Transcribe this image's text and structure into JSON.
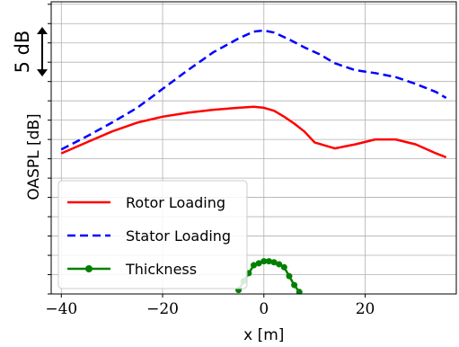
{
  "chart_data": {
    "type": "line",
    "xlabel": "x [m]",
    "ylabel": "OASPL [dB]",
    "scale_annotation": "5 dB",
    "scale_annotation_value_db": 5,
    "x_ticks": [
      -40,
      -20,
      0,
      20
    ],
    "x_tick_labels": [
      "−40",
      "−20",
      "0",
      "20"
    ],
    "xlim": [
      -42,
      38
    ],
    "ylim": [
      0,
      29.5
    ],
    "y_minor_ticks": [
      0,
      1.95,
      3.9,
      5.85,
      7.8,
      9.75,
      11.7,
      13.65,
      15.6,
      17.55,
      19.5,
      21.45,
      23.4,
      25.35,
      27.3,
      29.25
    ],
    "grid": true,
    "legend_position": "lower-left",
    "series": [
      {
        "name": "Rotor Loading",
        "color": "#ff0000",
        "style": "solid",
        "x": [
          -40,
          -35,
          -30,
          -25,
          -20,
          -15,
          -10,
          -5,
          -2,
          0,
          2,
          4,
          6,
          8,
          10,
          14,
          18,
          22,
          26,
          30,
          34,
          36
        ],
        "y": [
          14.2,
          15.3,
          16.4,
          17.3,
          17.9,
          18.3,
          18.6,
          18.8,
          18.9,
          18.8,
          18.5,
          17.9,
          17.2,
          16.4,
          15.3,
          14.7,
          15.1,
          15.6,
          15.6,
          15.1,
          14.2,
          13.8
        ]
      },
      {
        "name": "Stator Loading",
        "color": "#0000ff",
        "style": "dashed",
        "x": [
          -40,
          -35,
          -30,
          -25,
          -20,
          -15,
          -10,
          -5,
          -2,
          0,
          2,
          5,
          8,
          11,
          14,
          18,
          22,
          26,
          30,
          34,
          36
        ],
        "y": [
          14.6,
          15.9,
          17.3,
          18.8,
          20.7,
          22.6,
          24.4,
          25.8,
          26.5,
          26.6,
          26.4,
          25.7,
          24.9,
          24.2,
          23.3,
          22.6,
          22.3,
          21.9,
          21.2,
          20.4,
          19.8
        ]
      },
      {
        "name": "Thickness",
        "color": "#008000",
        "style": "solid-marker",
        "x": [
          -5,
          -4,
          -3,
          -2,
          -1,
          0,
          1,
          2,
          3,
          4,
          5,
          6,
          7
        ],
        "y": [
          0.4,
          1.3,
          2.1,
          2.9,
          3.1,
          3.3,
          3.3,
          3.2,
          3.0,
          2.7,
          1.8,
          0.9,
          0.2
        ]
      }
    ]
  }
}
